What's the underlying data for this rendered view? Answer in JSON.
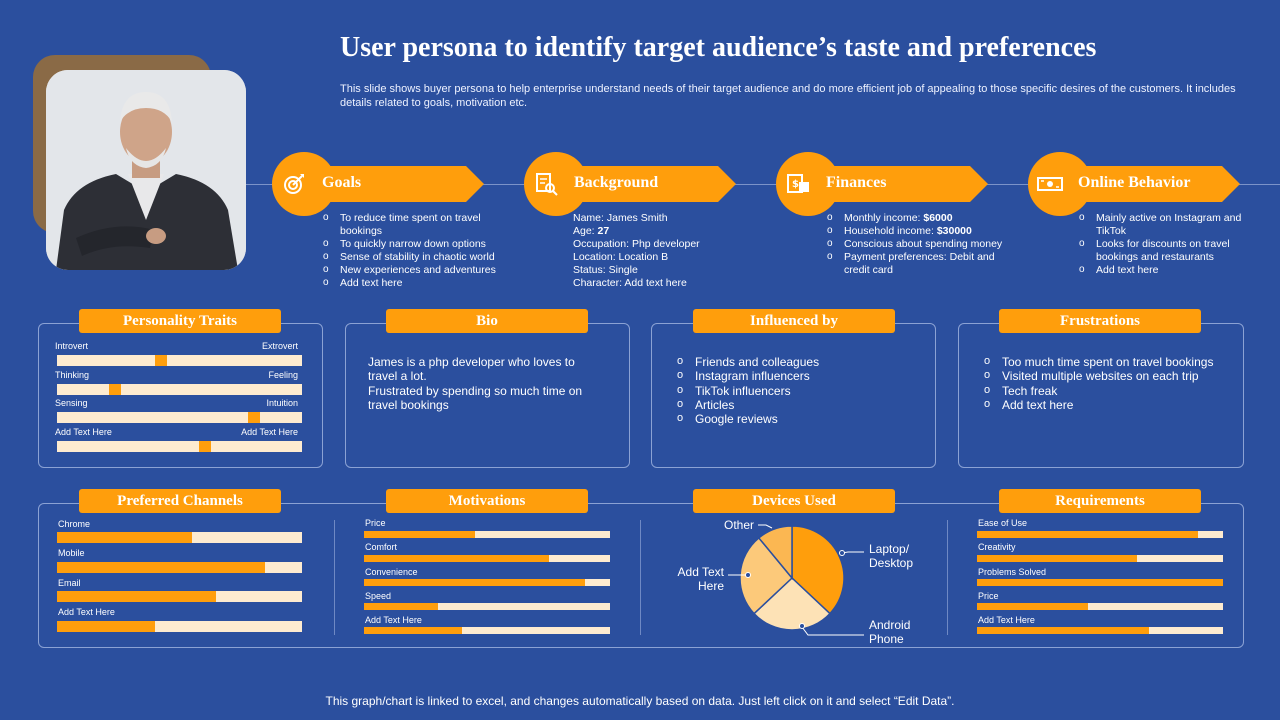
{
  "header": {
    "title": "User persona to identify target audience’s taste and preferences",
    "subtitle": "This slide shows buyer persona to help enterprise understand needs of their target audience and do more efficient job of appealing to those specific desires of the customers. It includes details related to goals, motivation etc."
  },
  "colors": {
    "background": "#2b4f9e",
    "accent": "#ff9e0c",
    "track": "#fdebd0",
    "photo_frame": "#8a6a46"
  },
  "top_sections": {
    "goals": {
      "label": "Goals",
      "icon": "target-dartboard-icon",
      "items": [
        "To reduce time spent on travel bookings",
        "To quickly narrow down options",
        "Sense of stability in chaotic world",
        "New experiences and adventures",
        "Add text here"
      ]
    },
    "background": {
      "label": "Background",
      "icon": "document-search-icon",
      "name_label": "Name:",
      "name_value": "James Smith",
      "age_label": "Age:",
      "age_value": "27",
      "occupation": "Occupation: Php developer",
      "location": "Location: Location B",
      "status": "Status: Single",
      "character": "Character: Add text here"
    },
    "finances": {
      "label": "Finances",
      "icon": "money-document-icon",
      "monthly_label": "Monthly income:",
      "monthly_value": "$6000",
      "household_label": "Household income:",
      "household_value": "$30000",
      "item3": "Conscious about spending money",
      "item4": "Payment preferences: Debit and credit card"
    },
    "online_behavior": {
      "label": "Online Behavior",
      "icon": "cash-bill-icon",
      "items": [
        "Mainly active on Instagram and TikTok",
        "Looks for discounts on travel bookings and restaurants",
        "Add text here"
      ]
    }
  },
  "personality_traits": {
    "title": "Personality Traits",
    "traits": [
      {
        "left": "Introvert",
        "right": "Extrovert",
        "position": 0.42
      },
      {
        "left": "Thinking",
        "right": "Feeling",
        "position": 0.225
      },
      {
        "left": "Sensing",
        "right": "Intuition",
        "position": 0.82
      },
      {
        "left": "Add Text Here",
        "right": "Add Text Here",
        "position": 0.61
      }
    ]
  },
  "bio": {
    "title": "Bio",
    "text1": "James is a php developer who loves to travel a lot.",
    "text2": "Frustrated by spending so much time on travel bookings"
  },
  "influenced_by": {
    "title": "Influenced by",
    "items": [
      "Friends and colleagues",
      "Instagram influencers",
      "TikTok influencers",
      "Articles",
      "Google reviews"
    ]
  },
  "frustrations": {
    "title": "Frustrations",
    "items": [
      "Too much time spent on travel bookings",
      "Visited multiple websites on each trip",
      "Tech freak",
      "Add text here"
    ]
  },
  "preferred_channels": {
    "title": "Preferred Channels",
    "items": [
      {
        "label": "Chrome",
        "value": 0.55
      },
      {
        "label": "Mobile",
        "value": 0.85
      },
      {
        "label": "Email",
        "value": 0.65
      },
      {
        "label": "Add Text Here",
        "value": 0.4
      }
    ]
  },
  "motivations": {
    "title": "Motivations",
    "items": [
      {
        "label": "Price",
        "value": 0.45
      },
      {
        "label": "Comfort",
        "value": 0.75
      },
      {
        "label": "Convenience",
        "value": 0.9
      },
      {
        "label": "Speed",
        "value": 0.3
      },
      {
        "label": "Add Text Here",
        "value": 0.4
      }
    ]
  },
  "devices_used": {
    "title": "Devices Used",
    "labels": {
      "laptop": "Laptop/ Desktop",
      "android": "Android Phone",
      "add": "Add Text Here",
      "other": "Other"
    }
  },
  "chart_data": {
    "type": "pie",
    "categories": [
      "Laptop/ Desktop",
      "Android Phone",
      "Add Text Here",
      "Other"
    ],
    "values": [
      37,
      26,
      26,
      11
    ],
    "colors": [
      "#ff9e0c",
      "#fde2b6",
      "#fcc97a",
      "#fbb752"
    ],
    "title": ""
  },
  "requirements": {
    "title": "Requirements",
    "items": [
      {
        "label": "Ease of Use",
        "value": 0.9
      },
      {
        "label": "Creativity",
        "value": 0.65
      },
      {
        "label": "Problems Solved",
        "value": 1.0
      },
      {
        "label": "Price",
        "value": 0.45
      },
      {
        "label": "Add Text Here",
        "value": 0.7
      }
    ]
  },
  "footer": {
    "text": "This graph/chart is linked to excel, and changes automatically based on data.  Just left click on it and select “Edit Data”."
  }
}
